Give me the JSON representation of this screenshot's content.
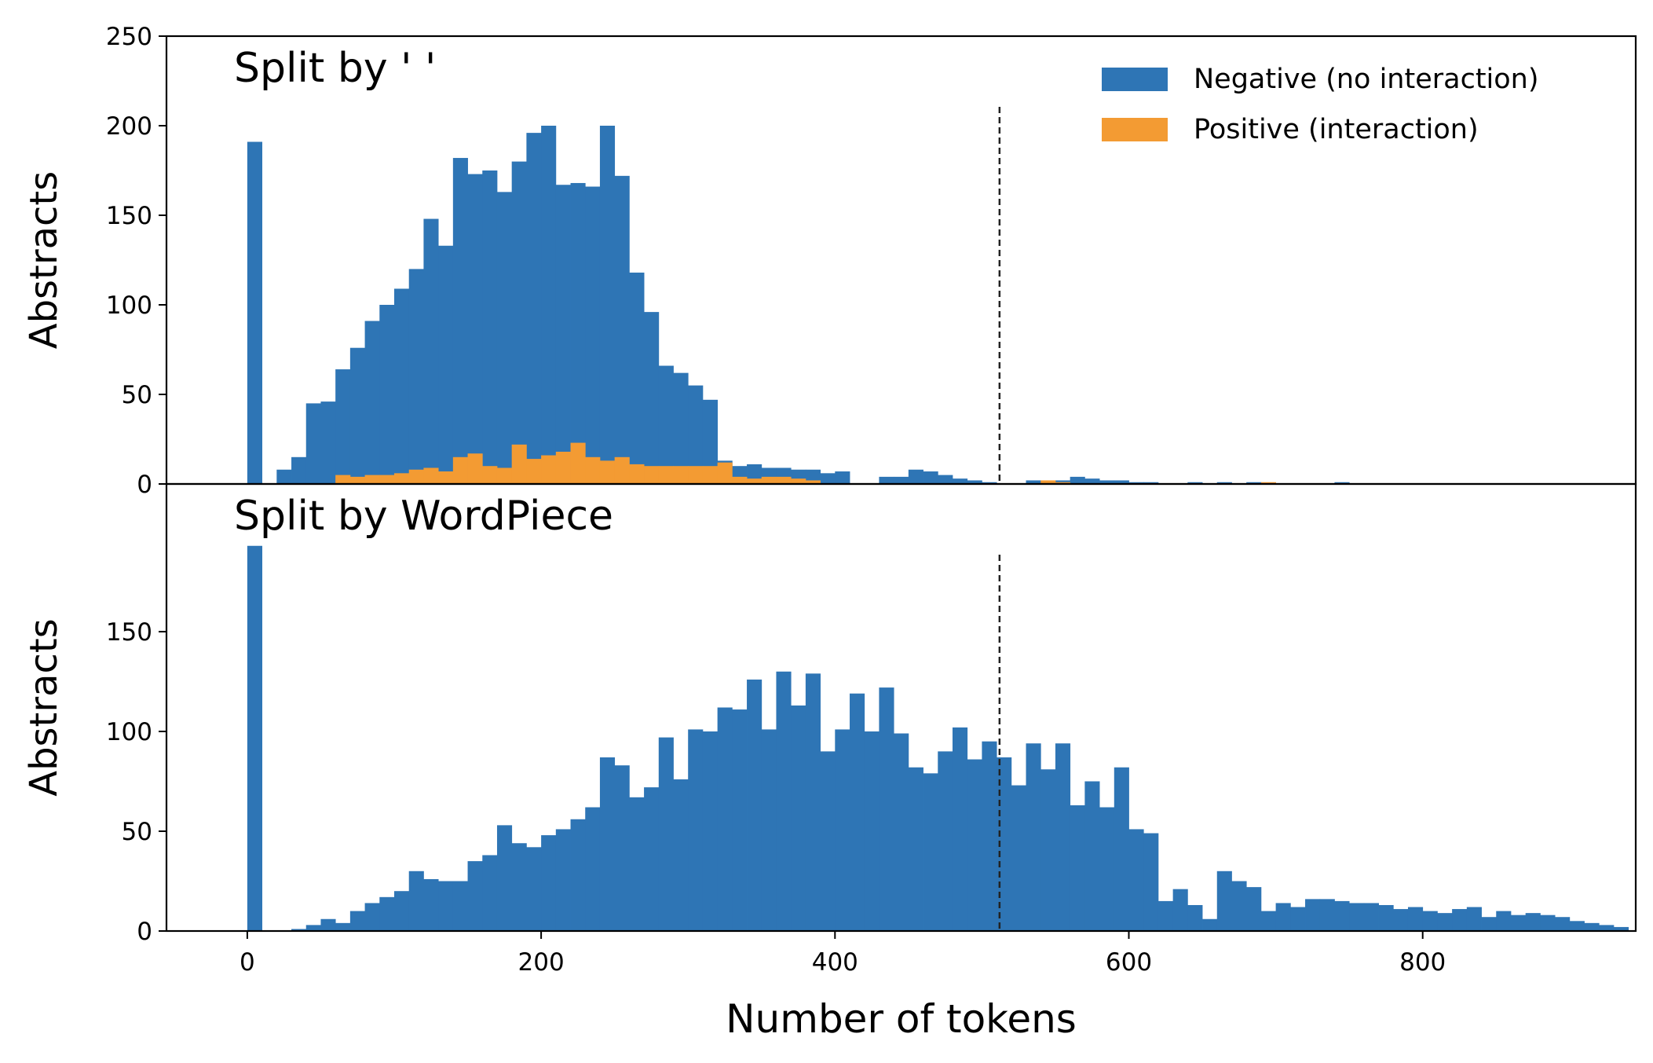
{
  "figure": {
    "xlabel": "Number of tokens",
    "colors": {
      "negative": "#2e75b5",
      "positive": "#f39b33",
      "axis": "#000000",
      "cutoff": "#222222"
    },
    "legend": {
      "placement": "top-right",
      "entries": [
        "Negative (no interaction)",
        "Positive (interaction)"
      ]
    }
  },
  "chart_data": [
    {
      "type": "bar",
      "title": "Split by ' '",
      "xlabel": "Number of tokens",
      "ylabel": "Abstracts",
      "xlim": [
        -55,
        945
      ],
      "ylim": [
        0,
        250
      ],
      "xticks": [
        0,
        200,
        400,
        600,
        800
      ],
      "yticks": [
        0,
        50,
        100,
        150,
        200,
        250
      ],
      "grid": false,
      "legend": "top-right",
      "cutoff_line": 512,
      "bin_width": 10,
      "bin_start": 0,
      "series": [
        {
          "name": "Negative (no interaction)",
          "values": [
            191,
            0,
            8,
            15,
            45,
            46,
            64,
            76,
            91,
            100,
            109,
            120,
            148,
            133,
            182,
            173,
            175,
            163,
            180,
            196,
            200,
            167,
            168,
            166,
            200,
            172,
            118,
            96,
            66,
            62,
            55,
            47,
            13,
            10,
            11,
            9,
            9,
            8,
            8,
            6,
            7,
            0,
            0,
            4,
            4,
            8,
            7,
            5,
            3,
            2,
            1,
            0,
            0,
            2,
            0,
            2,
            4,
            3,
            2,
            2,
            1,
            1,
            0,
            0,
            1,
            0,
            1,
            0,
            1,
            0,
            0,
            0,
            0,
            0,
            1,
            0,
            0,
            0,
            0,
            0,
            0,
            0,
            0,
            0,
            0,
            0,
            0,
            0,
            0,
            0,
            0,
            0,
            0,
            0
          ]
        },
        {
          "name": "Positive (interaction)",
          "values": [
            0,
            0,
            0,
            0,
            0,
            0,
            5,
            4,
            5,
            5,
            6,
            8,
            9,
            7,
            15,
            17,
            10,
            9,
            22,
            14,
            16,
            18,
            23,
            15,
            13,
            15,
            11,
            10,
            10,
            10,
            10,
            10,
            12,
            4,
            3,
            4,
            4,
            3,
            2,
            0,
            0,
            0,
            0,
            0,
            0,
            0,
            0,
            0,
            0,
            0,
            0,
            0,
            0,
            0,
            2,
            1,
            0,
            0,
            0,
            0,
            0,
            0,
            0,
            0,
            0,
            0,
            0,
            0,
            0,
            1,
            0,
            0,
            0,
            0,
            0,
            0,
            0,
            0,
            0,
            0,
            0,
            0,
            0,
            0,
            0,
            0,
            0,
            0,
            0,
            0,
            0,
            0,
            0,
            0
          ]
        }
      ]
    },
    {
      "type": "bar",
      "title": "Split by WordPiece",
      "xlabel": "Number of tokens",
      "ylabel": "Abstracts",
      "xlim": [
        -55,
        945
      ],
      "ylim": [
        0,
        224
      ],
      "xticks": [
        0,
        200,
        400,
        600,
        800
      ],
      "yticks": [
        0,
        50,
        100,
        150
      ],
      "grid": false,
      "cutoff_line": 512,
      "bin_width": 10,
      "bin_start": 0,
      "series": [
        {
          "name": "Negative (no interaction)",
          "values": [
            193,
            0,
            0,
            1,
            3,
            6,
            4,
            10,
            14,
            17,
            20,
            30,
            26,
            25,
            25,
            35,
            38,
            53,
            44,
            42,
            48,
            51,
            56,
            62,
            87,
            83,
            67,
            72,
            97,
            76,
            101,
            100,
            112,
            111,
            126,
            101,
            130,
            113,
            129,
            90,
            101,
            119,
            100,
            122,
            99,
            82,
            79,
            90,
            102,
            86,
            95,
            87,
            73,
            94,
            81,
            94,
            63,
            75,
            62,
            82,
            51,
            49,
            15,
            21,
            13,
            6,
            30,
            25,
            22,
            10,
            14,
            12,
            16,
            16,
            15,
            14,
            14,
            13,
            11,
            12,
            10,
            9,
            11,
            12,
            7,
            10,
            8,
            9,
            8,
            7,
            5,
            4,
            3,
            2
          ]
        },
        {
          "name": "Positive (interaction)",
          "values": [
            0,
            0,
            0,
            0,
            0,
            0,
            0,
            0,
            0,
            0,
            0,
            0,
            0,
            0,
            0,
            0,
            0,
            0,
            0,
            0,
            0,
            0,
            0,
            0,
            0,
            0,
            0,
            0,
            0,
            0,
            0,
            0,
            0,
            0,
            0,
            0,
            0,
            0,
            0,
            0,
            0,
            0,
            0,
            0,
            0,
            0,
            0,
            0,
            0,
            0,
            0,
            0,
            0,
            0,
            0,
            0,
            0,
            0,
            0,
            0,
            0,
            0,
            0,
            0,
            0,
            0,
            0,
            0,
            0,
            0,
            0,
            0,
            0,
            0,
            0,
            0,
            0,
            0,
            0,
            0,
            0,
            0,
            0,
            0,
            0,
            0,
            0,
            0,
            0,
            0,
            0,
            0,
            0,
            0
          ]
        }
      ]
    }
  ]
}
